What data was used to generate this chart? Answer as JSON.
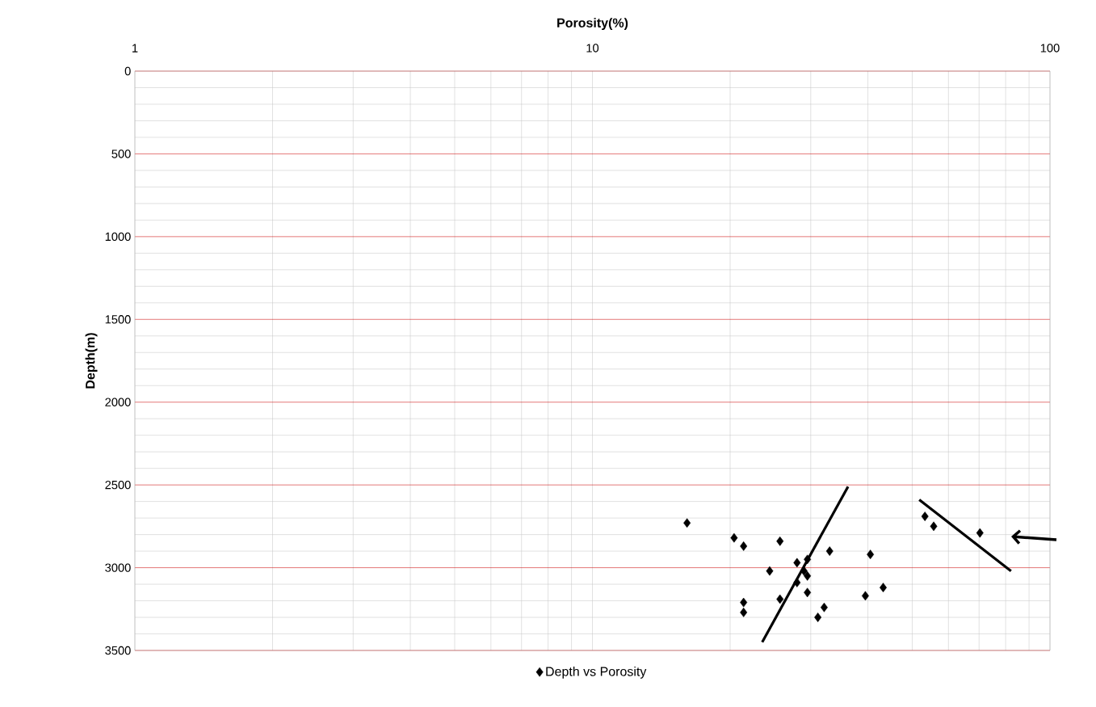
{
  "chart_data": {
    "type": "scatter",
    "xlabel": "Porosity(%)",
    "ylabel": "Depth(m)",
    "log": "x",
    "xlim": [
      1,
      100
    ],
    "xticks": [
      1,
      10,
      100
    ],
    "ylim": [
      3500,
      0
    ],
    "yticks": [
      0,
      500,
      1000,
      1500,
      2000,
      2500,
      3000,
      3500
    ],
    "grid": true,
    "legend": "bottom",
    "series": [
      {
        "name": "Depth vs Porosity",
        "color": "#000000",
        "marker": "diamond",
        "x": [
          16.1,
          20.4,
          21.4,
          25.7,
          33.0,
          40.5,
          24.4,
          28.0,
          29.5,
          29.5,
          28.0,
          29.5,
          39.5,
          43.2,
          21.4,
          21.4,
          25.7,
          32.1,
          31.1,
          29.0,
          53.3,
          55.7,
          70.3
        ],
        "values": [
          2730,
          2820,
          2870,
          2840,
          2900,
          2920,
          3020,
          2970,
          2950,
          3050,
          3090,
          3150,
          3170,
          3120,
          3210,
          3270,
          3190,
          3240,
          3300,
          3020,
          2690,
          2750,
          2790
        ]
      },
      {
        "type": "line",
        "color": "#000000",
        "x": [
          36.2,
          23.5
        ],
        "values": [
          2510,
          3450
        ]
      },
      {
        "type": "line",
        "color": "#000000",
        "x": [
          51.8,
          82.2
        ],
        "values": [
          2590,
          3020
        ]
      }
    ]
  }
}
